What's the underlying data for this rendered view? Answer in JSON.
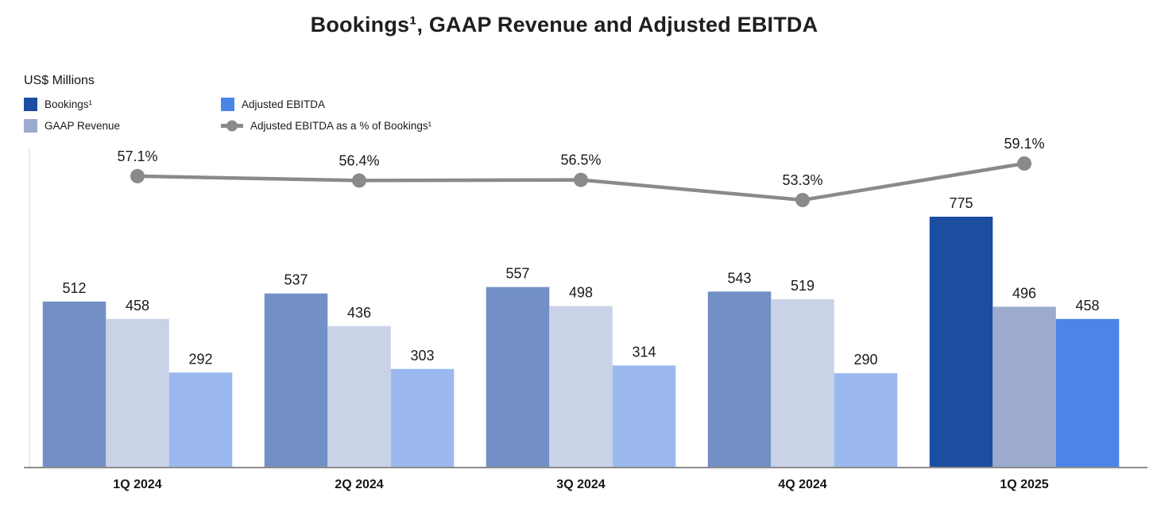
{
  "title": "Bookings¹, GAAP Revenue and Adjusted EBITDA",
  "units_label": "US$ Millions",
  "legend": {
    "bookings": "Bookings¹",
    "gaap_revenue": "GAAP Revenue",
    "adjusted_ebitda": "Adjusted EBITDA",
    "ebitda_pct": "Adjusted EBITDA as a % of Bookings¹"
  },
  "colors": {
    "current": {
      "bookings": "#1B4DA1",
      "gaap_revenue": "#9BAACD",
      "adjusted_ebitda": "#4C84E8"
    },
    "prior": {
      "bookings": "#7290C5",
      "gaap_revenue": "#C9D2E7",
      "adjusted_ebitda": "#9BB9EE"
    },
    "line": "#8A8A8A",
    "baseline": "#8C8C8C",
    "left_axis": "#E6E6E6",
    "label_text": "#1a1a1a"
  },
  "chart_data": {
    "type": "bar+line",
    "title": "Bookings¹, GAAP Revenue and Adjusted EBITDA",
    "ylabel": "US$ Millions",
    "categories": [
      "1Q 2024",
      "2Q 2024",
      "3Q 2024",
      "4Q 2024",
      "1Q 2025"
    ],
    "series": [
      {
        "name": "Bookings¹",
        "key": "bookings",
        "values": [
          512,
          537,
          557,
          543,
          775
        ]
      },
      {
        "name": "GAAP Revenue",
        "key": "gaap_revenue",
        "values": [
          458,
          436,
          498,
          519,
          496
        ]
      },
      {
        "name": "Adjusted EBITDA",
        "key": "adjusted_ebitda",
        "values": [
          292,
          303,
          314,
          290,
          458
        ]
      }
    ],
    "line_series": {
      "name": "Adjusted EBITDA as a % of Bookings¹",
      "values": [
        57.1,
        56.4,
        56.5,
        53.3,
        59.1
      ],
      "labels": [
        "57.1%",
        "56.4%",
        "56.5%",
        "53.3%",
        "59.1%"
      ],
      "unit": "%"
    },
    "highlight_category_index": 4,
    "grid": false,
    "legend_position": "top-left",
    "value_labels": true
  }
}
